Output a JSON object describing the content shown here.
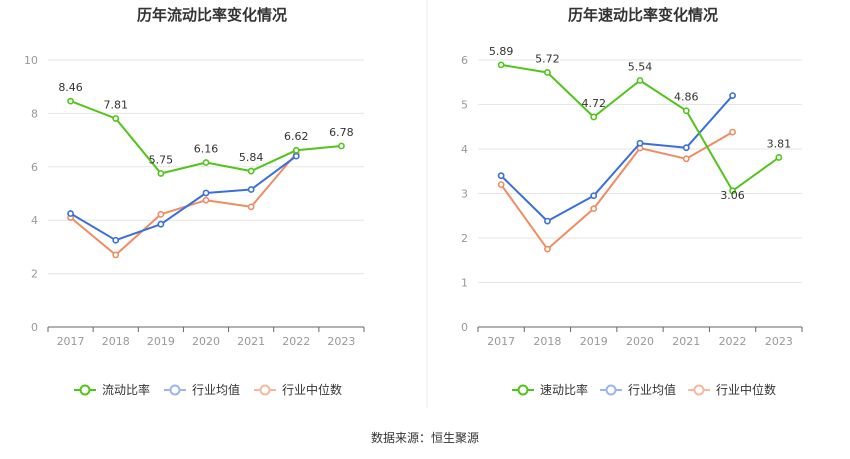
{
  "colors": {
    "primary": "#52c41a",
    "industry_avg": "#3a6fdc",
    "industry_median": "#f08c62",
    "legend_avg": "#9bb5f0",
    "legend_median": "#f5b8a0",
    "grid": "#e6e6e6",
    "axis": "#666666"
  },
  "source": "数据来源：恒生聚源",
  "chart_data": [
    {
      "type": "line",
      "title": "历年流动比率变化情况",
      "categories": [
        "2017",
        "2018",
        "2019",
        "2020",
        "2021",
        "2022",
        "2023"
      ],
      "ylim": [
        0,
        10
      ],
      "yticks": [
        0,
        2,
        4,
        6,
        8,
        10
      ],
      "grid": true,
      "legend_position": "bottom",
      "series": [
        {
          "name": "流动比率",
          "key": "primary",
          "labeled": true,
          "values": [
            8.46,
            7.81,
            5.75,
            6.16,
            5.84,
            6.62,
            6.78
          ]
        },
        {
          "name": "行业均值",
          "key": "avg",
          "labeled": false,
          "values": [
            4.25,
            3.25,
            3.85,
            5.02,
            5.15,
            6.4,
            null
          ]
        },
        {
          "name": "行业中位数",
          "key": "median",
          "labeled": false,
          "values": [
            4.1,
            2.7,
            4.22,
            4.75,
            4.5,
            6.5,
            null
          ]
        }
      ]
    },
    {
      "type": "line",
      "title": "历年速动比率变化情况",
      "categories": [
        "2017",
        "2018",
        "2019",
        "2020",
        "2021",
        "2022",
        "2023"
      ],
      "ylim": [
        0,
        6
      ],
      "yticks": [
        0,
        1,
        2,
        3,
        4,
        5,
        6
      ],
      "grid": true,
      "legend_position": "bottom",
      "series": [
        {
          "name": "速动比率",
          "key": "primary",
          "labeled": true,
          "values": [
            5.89,
            5.72,
            4.72,
            5.54,
            4.86,
            3.06,
            3.81
          ]
        },
        {
          "name": "行业均值",
          "key": "avg",
          "labeled": false,
          "values": [
            3.4,
            2.38,
            2.95,
            4.13,
            4.03,
            5.2,
            null
          ]
        },
        {
          "name": "行业中位数",
          "key": "median",
          "labeled": false,
          "values": [
            3.2,
            1.75,
            2.66,
            4.02,
            3.78,
            4.38,
            null
          ]
        }
      ]
    }
  ]
}
